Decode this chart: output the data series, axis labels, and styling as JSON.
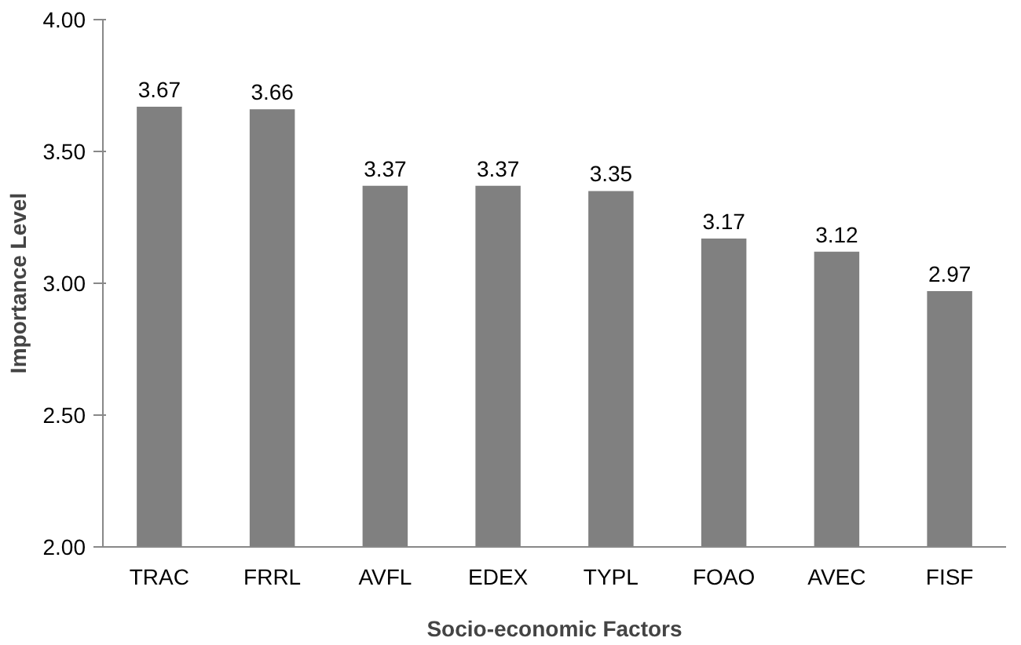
{
  "chart_data": {
    "type": "bar",
    "xlabel": "Socio-economic Factors",
    "ylabel": "Importance Level",
    "categories": [
      "TRAC",
      "FRRL",
      "AVFL",
      "EDEX",
      "TYPL",
      "FOAO",
      "AVEC",
      "FISF"
    ],
    "values": [
      3.67,
      3.66,
      3.37,
      3.37,
      3.35,
      3.17,
      3.12,
      2.97
    ],
    "color": "#808080",
    "ylim": [
      2,
      4
    ],
    "yticks": [
      {
        "value": 2,
        "label": "2.00"
      },
      {
        "value": 2.5,
        "label": "2.50"
      },
      {
        "value": 3,
        "label": "3.00"
      },
      {
        "value": 3.5,
        "label": "3.50"
      },
      {
        "value": 4,
        "label": "4.00"
      }
    ],
    "data_labels": true,
    "grid": false
  }
}
